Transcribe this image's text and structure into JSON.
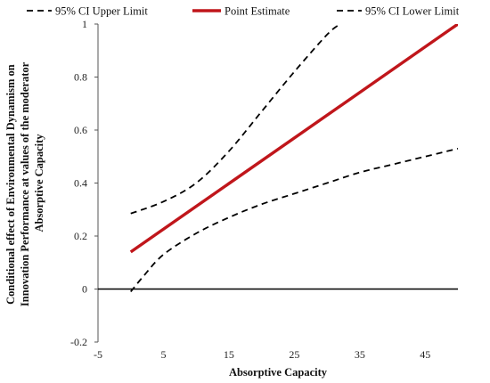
{
  "chart_data": {
    "type": "line",
    "xlabel": "Absorptive Capacity",
    "ylabel_lines": [
      "Conditional effect of Environmental Dynamism on",
      "Innovation Performance at values of the moderator",
      "Absorptive Capacity"
    ],
    "xlim": [
      -5,
      50
    ],
    "ylim": [
      -0.2,
      1
    ],
    "xticks": [
      -5,
      5,
      15,
      25,
      35,
      45
    ],
    "yticks": [
      -0.2,
      0,
      0.2,
      0.4,
      0.6,
      0.8,
      1
    ],
    "ytick_labels": [
      "-0.2",
      "0",
      "0.2",
      "0.4",
      "0.6",
      "0.8",
      "1"
    ],
    "grid": false,
    "legend_position": "top",
    "reference_line_y": 0,
    "series": [
      {
        "name": "95% CI Upper Limit",
        "style": "dashed",
        "color": "#000000",
        "points": [
          [
            0,
            0.285
          ],
          [
            5,
            0.33
          ],
          [
            10,
            0.4
          ],
          [
            15,
            0.52
          ],
          [
            20,
            0.67
          ],
          [
            25,
            0.82
          ],
          [
            30,
            0.96
          ],
          [
            32,
            1.0
          ]
        ]
      },
      {
        "name": "Point Estimate",
        "style": "solid",
        "color": "#c0161b",
        "points": [
          [
            0,
            0.14
          ],
          [
            50,
            1.0
          ]
        ]
      },
      {
        "name": "95% CI Lower Limit",
        "style": "dashed",
        "color": "#000000",
        "points": [
          [
            0,
            -0.01
          ],
          [
            2,
            0.05
          ],
          [
            5,
            0.13
          ],
          [
            10,
            0.21
          ],
          [
            15,
            0.27
          ],
          [
            20,
            0.32
          ],
          [
            25,
            0.36
          ],
          [
            30,
            0.4
          ],
          [
            35,
            0.44
          ],
          [
            40,
            0.47
          ],
          [
            45,
            0.5
          ],
          [
            50,
            0.53
          ]
        ]
      }
    ]
  }
}
